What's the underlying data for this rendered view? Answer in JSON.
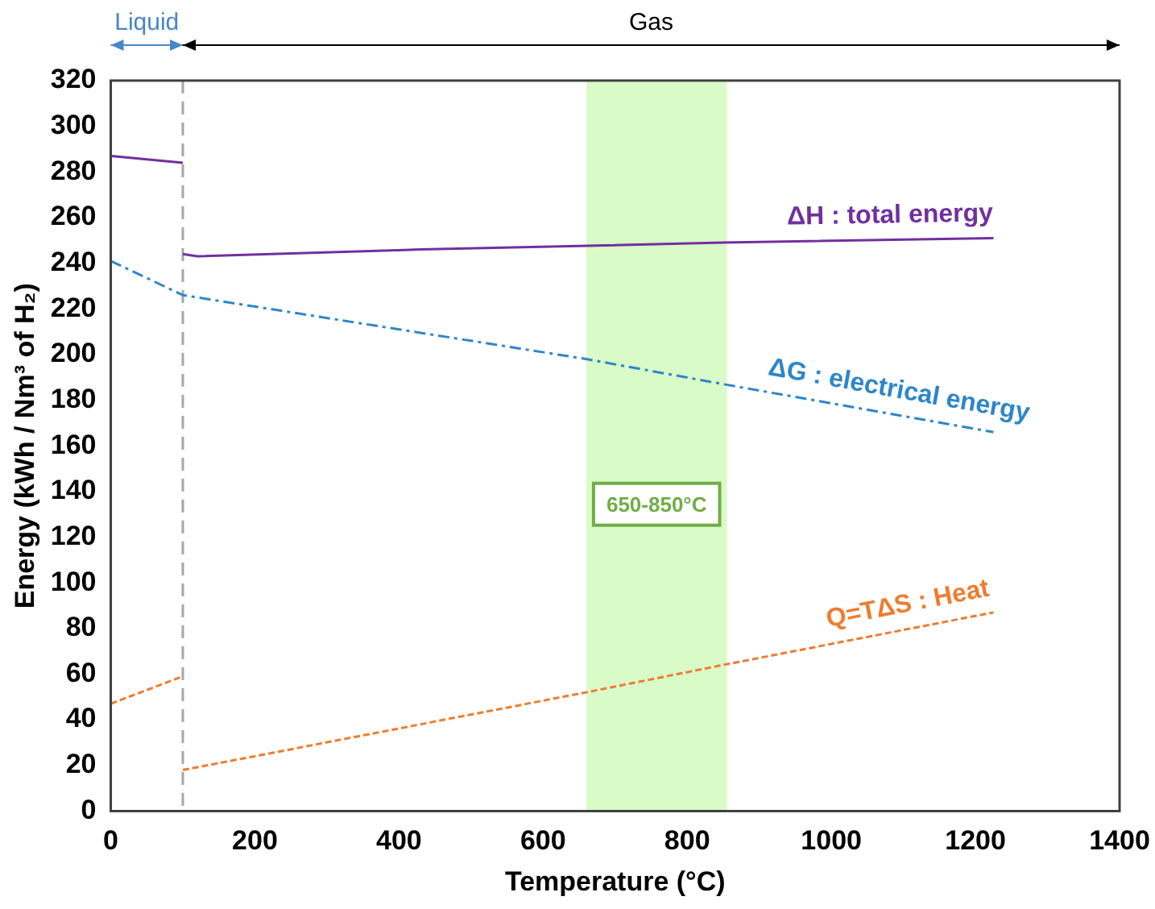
{
  "chart_data": {
    "type": "line",
    "xlabel": "Temperature (°C)",
    "ylabel": "Energy (kWh / Nm³ of H₂)",
    "xlim": [
      0,
      1400
    ],
    "xticks": [
      0,
      200,
      400,
      600,
      800,
      1000,
      1200,
      1400
    ],
    "ylim": [
      0,
      320
    ],
    "yticks": [
      0,
      20,
      40,
      60,
      80,
      100,
      120,
      140,
      160,
      180,
      200,
      220,
      240,
      260,
      280,
      300,
      320
    ],
    "grid": false,
    "legend": false,
    "marker": "none",
    "series": [
      {
        "color": "#7030a0",
        "line_style": "solid",
        "x": [
          0,
          100
        ],
        "values": [
          287,
          284
        ]
      },
      {
        "name": "ΔH : total energy",
        "color": "#7030a0",
        "line_style": "solid",
        "x": [
          100,
          120,
          430,
          850,
          1225
        ],
        "values": [
          244,
          243,
          246,
          249,
          251
        ]
      },
      {
        "name": "ΔG : electrical energy",
        "color": "#2e86c8",
        "line_style": "dashed",
        "x": [
          0,
          100,
          660,
          850,
          1225
        ],
        "values": [
          241,
          226,
          198,
          187,
          166
        ]
      },
      {
        "color": "#ed7d31",
        "line_style": "dotted",
        "x": [
          0,
          100
        ],
        "values": [
          47,
          59
        ]
      },
      {
        "name": "Q=TΔS : Heat",
        "color": "#ed7d31",
        "line_style": "dotted",
        "x": [
          100,
          200,
          660,
          850,
          1225
        ],
        "values": [
          18,
          24,
          52,
          64,
          87
        ]
      }
    ],
    "annotations": [
      "Liquid",
      "Gas"
    ],
    "ref_lines": [
      {
        "axis": "x",
        "value": 100,
        "color": "#a6a6a6",
        "line_style": "dashed"
      }
    ],
    "bands": [
      {
        "axis": "x",
        "from": 660,
        "to": 855,
        "label": "650-850°C",
        "color": "#d9fbc8"
      }
    ]
  }
}
